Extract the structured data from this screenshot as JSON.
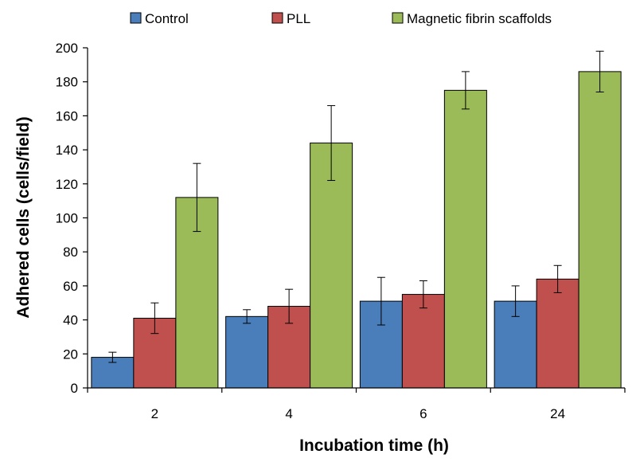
{
  "chart_data": {
    "type": "bar",
    "title": "",
    "xlabel": "Incubation time (h)",
    "ylabel": "Adhered cells (cells/field)",
    "categories": [
      "2",
      "4",
      "6",
      "24"
    ],
    "ylim": [
      0,
      200
    ],
    "yticks": [
      0,
      20,
      40,
      60,
      80,
      100,
      120,
      140,
      160,
      180,
      200
    ],
    "grid": false,
    "legend_position": "top",
    "series": [
      {
        "name": "Control",
        "color": "#4a7ebb",
        "values": [
          18,
          42,
          51,
          51
        ],
        "error": [
          3,
          4,
          14,
          9
        ]
      },
      {
        "name": "PLL",
        "color": "#c0504d",
        "values": [
          41,
          48,
          55,
          64
        ],
        "error": [
          9,
          10,
          8,
          8
        ]
      },
      {
        "name": "Magnetic fibrin scaffolds",
        "color": "#9bbb59",
        "values": [
          112,
          144,
          175,
          186
        ],
        "error": [
          20,
          22,
          11,
          12
        ]
      }
    ]
  }
}
